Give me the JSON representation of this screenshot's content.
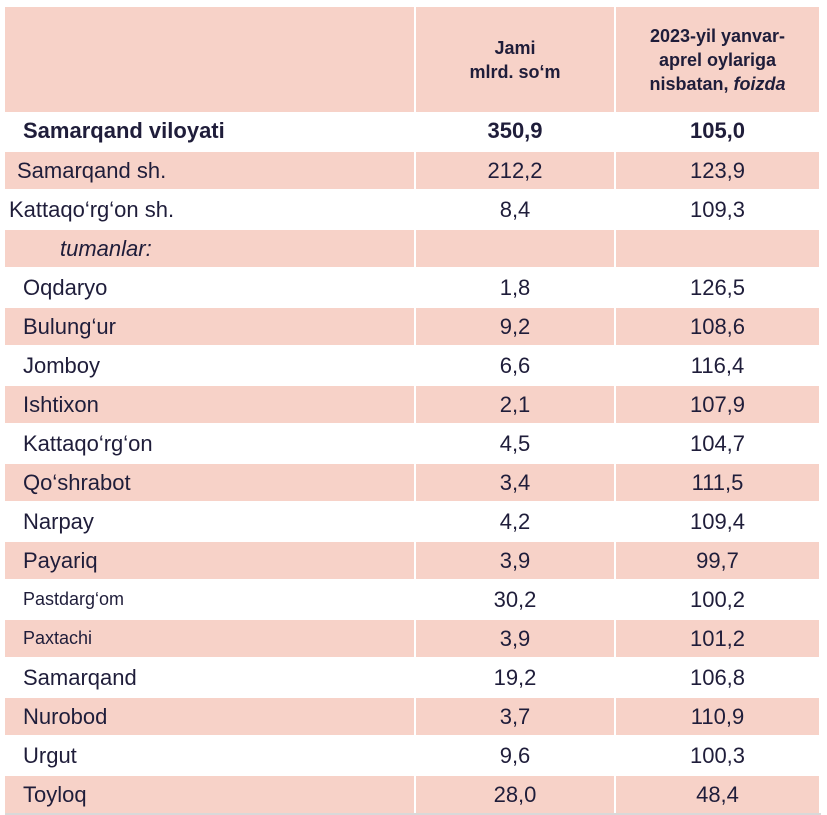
{
  "table": {
    "headers": {
      "name": "",
      "col1_line1": "Jami",
      "col1_line2": "mlrd. so‘m",
      "col2_line1": "2023-yil yanvar-",
      "col2_line2": "aprel oylariga",
      "col2_line3_pre": "nisbatan, ",
      "col2_line3_italic": "foizda"
    },
    "rows": [
      {
        "name": "Samarqand viloyati",
        "jami": "350,9",
        "foiz": "105,0"
      },
      {
        "name": "Samarqand sh.",
        "jami": "212,2",
        "foiz": "123,9"
      },
      {
        "name": "Kattaqo‘rg‘on sh.",
        "jami": "8,4",
        "foiz": "109,3"
      },
      {
        "name": "tumanlar:",
        "jami": "",
        "foiz": ""
      },
      {
        "name": "Oqdaryo",
        "jami": "1,8",
        "foiz": "126,5"
      },
      {
        "name": "Bulung‘ur",
        "jami": "9,2",
        "foiz": "108,6"
      },
      {
        "name": "Jomboy",
        "jami": "6,6",
        "foiz": "116,4"
      },
      {
        "name": "Ishtixon",
        "jami": "2,1",
        "foiz": "107,9"
      },
      {
        "name": "Kattaqo‘rg‘on",
        "jami": "4,5",
        "foiz": "104,7"
      },
      {
        "name": "Qo‘shrabot",
        "jami": "3,4",
        "foiz": "111,5"
      },
      {
        "name": "Narpay",
        "jami": "4,2",
        "foiz": "109,4"
      },
      {
        "name": "Payariq",
        "jami": "3,9",
        "foiz": "99,7"
      },
      {
        "name": "Pastdarg‘om",
        "jami": "30,2",
        "foiz": "100,2"
      },
      {
        "name": "Paxtachi",
        "jami": "3,9",
        "foiz": "101,2"
      },
      {
        "name": "Samarqand",
        "jami": "19,2",
        "foiz": "106,8"
      },
      {
        "name": "Nurobod",
        "jami": "3,7",
        "foiz": "110,9"
      },
      {
        "name": "Urgut",
        "jami": "9,6",
        "foiz": "100,3"
      },
      {
        "name": "Toyloq",
        "jami": "28,0",
        "foiz": "48,4"
      }
    ]
  },
  "colors": {
    "stripe": "#f7d2c8",
    "text": "#1f1d3a"
  }
}
